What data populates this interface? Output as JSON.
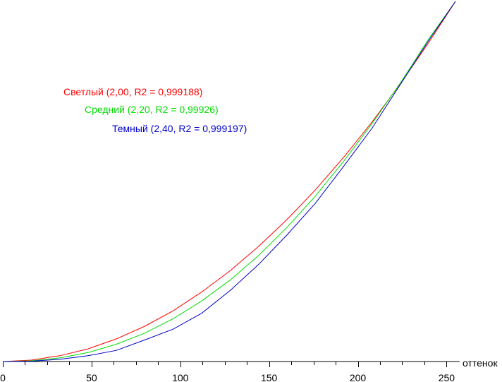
{
  "chart_data": {
    "type": "line",
    "xlabel": "оттенок",
    "ylabel": "",
    "xlim": [
      0,
      255
    ],
    "ylim": [
      0,
      1
    ],
    "x_ticks": [
      "0",
      "50",
      "100",
      "150",
      "200",
      "250"
    ],
    "x_tick_values": [
      0,
      50,
      100,
      150,
      200,
      250
    ],
    "grid": false,
    "legend": "top-left",
    "series": [
      {
        "name": "Светлый (2,00, R2 = 0,999188)",
        "color": "#ff0000",
        "x": [
          0,
          16,
          32,
          48,
          64,
          80,
          96,
          112,
          128,
          144,
          160,
          176,
          192,
          208,
          224,
          240,
          255
        ],
        "y": [
          0,
          0.004,
          0.016,
          0.035,
          0.063,
          0.098,
          0.141,
          0.193,
          0.252,
          0.319,
          0.394,
          0.476,
          0.567,
          0.665,
          0.772,
          0.886,
          1.0
        ]
      },
      {
        "name": "Средний (2,20, R2 = 0,99926)",
        "color": "#00dd00",
        "x": [
          0,
          16,
          32,
          48,
          64,
          80,
          96,
          112,
          128,
          144,
          160,
          176,
          192,
          208,
          224,
          240,
          255
        ],
        "y": [
          0,
          0.002,
          0.01,
          0.025,
          0.048,
          0.079,
          0.119,
          0.168,
          0.226,
          0.294,
          0.372,
          0.459,
          0.556,
          0.661,
          0.774,
          0.896,
          1.0
        ]
      },
      {
        "name": "Темный (2,40, R2 = 0,999197)",
        "color": "#0000cc",
        "x": [
          0,
          16,
          32,
          48,
          64,
          80,
          96,
          112,
          128,
          144,
          160,
          176,
          192,
          208,
          224,
          240,
          255
        ],
        "y": [
          0,
          0.001,
          0.006,
          0.016,
          0.031,
          0.06,
          0.09,
          0.134,
          0.197,
          0.269,
          0.351,
          0.439,
          0.542,
          0.648,
          0.77,
          0.892,
          1.0
        ]
      }
    ]
  }
}
